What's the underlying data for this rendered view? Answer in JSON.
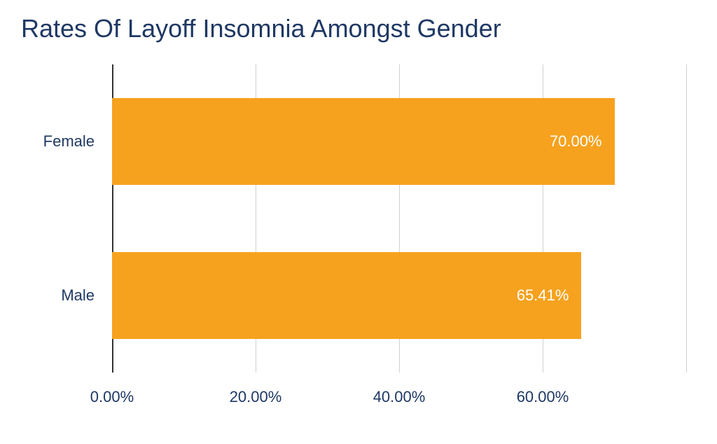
{
  "chart": {
    "type": "bar-horizontal",
    "title": "Rates Of Layoff Insomnia Amongst Gender",
    "title_color": "#1f3864",
    "title_fontsize": 36,
    "title_fontweight": 400,
    "background_color": "#ffffff",
    "axis_label_color": "#1f3864",
    "axis_label_fontsize": 22,
    "value_label_color": "#ffffff",
    "value_label_fontsize": 22,
    "grid_color": "#d0d0d0",
    "axis_line_color": "#333333",
    "bar_height_pct": 28,
    "categories": [
      {
        "label": "Female",
        "value": 70.0,
        "value_label": "70.00%",
        "color": "#f6a21e"
      },
      {
        "label": "Male",
        "value": 65.41,
        "value_label": "65.41%",
        "color": "#f6a21e"
      }
    ],
    "x_axis": {
      "min": 0,
      "max": 80,
      "tick_step": 20,
      "ticks": [
        {
          "value": 0,
          "label": "0.00%"
        },
        {
          "value": 20,
          "label": "20.00%"
        },
        {
          "value": 40,
          "label": "40.00%"
        },
        {
          "value": 60,
          "label": "60.00%"
        }
      ]
    }
  }
}
